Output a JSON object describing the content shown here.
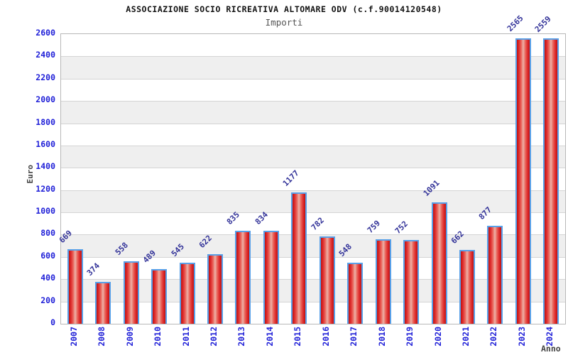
{
  "header": {
    "title": "ASSOCIAZIONE SOCIO RICREATIVA ALTOMARE ODV (c.f.90014120548)",
    "subtitle": "Importi"
  },
  "chart_data": {
    "type": "bar",
    "title": "ASSOCIAZIONE SOCIO RICREATIVA ALTOMARE ODV (c.f.90014120548)",
    "subtitle": "Importi",
    "xlabel": "Anno",
    "ylabel": "Euro",
    "categories": [
      "2007",
      "2008",
      "2009",
      "2010",
      "2011",
      "2012",
      "2013",
      "2014",
      "2015",
      "2016",
      "2017",
      "2018",
      "2019",
      "2020",
      "2021",
      "2022",
      "2023",
      "2024"
    ],
    "values": [
      669,
      374,
      558,
      489,
      545,
      622,
      835,
      834,
      1177,
      782,
      548,
      759,
      752,
      1091,
      662,
      877,
      2565,
      2559
    ],
    "ylim": [
      0,
      2600
    ],
    "ytick_step": 200,
    "grid": true,
    "legend_position": "none",
    "band_colors": [
      "#ffffff",
      "#efefef"
    ],
    "colors": {
      "bar_fill_edge": "#c01010",
      "bar_fill_center": "#ecb2a8",
      "bar_border": "#58a0e8",
      "tick_label": "#2020d8",
      "value_label": "#333399",
      "axis_title": "#444444",
      "gridline": "#d4d4d4",
      "plot_border": "#b8b8b8"
    }
  }
}
